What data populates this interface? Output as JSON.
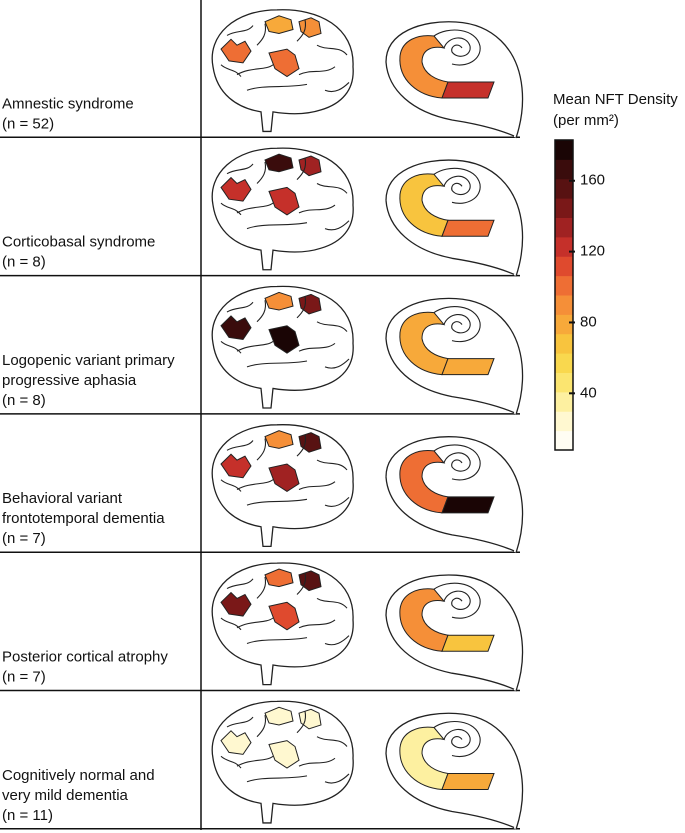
{
  "colorbar": {
    "title": "Mean NFT Density",
    "units": "(per mm²)",
    "clim": [
      8,
      183
    ],
    "ticks": [
      40,
      80,
      120,
      160
    ],
    "colormap": [
      "#fffdf3",
      "#fff8d0",
      "#fdf0a0",
      "#fbe570",
      "#f9d84e",
      "#f8c43e",
      "#f7a93a",
      "#f58f38",
      "#ee6e34",
      "#df4a2e",
      "#c5302a",
      "#a02222",
      "#7a1818",
      "#581212",
      "#3a0c0c",
      "#1a0505"
    ]
  },
  "rows": [
    {
      "label": [
        "Amnestic syndrome",
        "(n = 52)"
      ],
      "cortex": [
        100,
        80,
        85,
        100
      ],
      "hippocampus": [
        85,
        120
      ]
    },
    {
      "label": [
        "Corticobasal syndrome",
        "(n = 8)"
      ],
      "cortex": [
        125,
        170,
        130,
        125
      ],
      "hippocampus": [
        70,
        105
      ]
    },
    {
      "label": [
        "Logopenic variant primary",
        "progressive aphasia",
        "(n = 8)"
      ],
      "cortex": [
        165,
        95,
        150,
        180
      ],
      "hippocampus": [
        75,
        75
      ]
    },
    {
      "label": [
        "Behavioral variant",
        "frontotemporal dementia",
        "(n = 7)"
      ],
      "cortex": [
        125,
        95,
        155,
        135
      ],
      "hippocampus": [
        105,
        183
      ]
    },
    {
      "label": [
        "Posterior cortical atrophy",
        "(n = 7)"
      ],
      "cortex": [
        150,
        100,
        160,
        115
      ],
      "hippocampus": [
        95,
        70
      ]
    },
    {
      "label": [
        "Cognitively normal and",
        "very mild dementia",
        "(n = 11)"
      ],
      "cortex": [
        25,
        22,
        20,
        25
      ],
      "hippocampus": [
        30,
        75
      ]
    }
  ]
}
